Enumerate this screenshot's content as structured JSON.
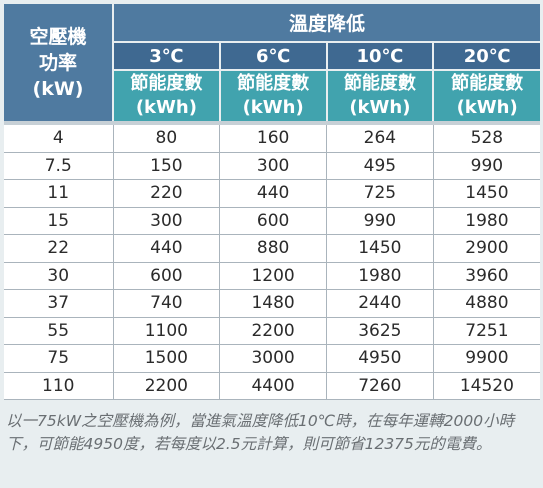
{
  "header": {
    "power_label_line1": "空壓機",
    "power_label_line2": "功率",
    "power_label_line3": "(kW)",
    "group_title": "溫度降低",
    "columns": [
      {
        "temp": "3℃",
        "label": "節能度數",
        "unit": "(kWh)"
      },
      {
        "temp": "6℃",
        "label": "節能度數",
        "unit": "(kWh)"
      },
      {
        "temp": "10℃",
        "label": "節能度數",
        "unit": "(kWh)"
      },
      {
        "temp": "20℃",
        "label": "節能度數",
        "unit": "(kWh)"
      }
    ]
  },
  "rows": [
    [
      "4",
      "80",
      "160",
      "264",
      "528"
    ],
    [
      "7.5",
      "150",
      "300",
      "495",
      "990"
    ],
    [
      "11",
      "220",
      "440",
      "725",
      "1450"
    ],
    [
      "15",
      "300",
      "600",
      "990",
      "1980"
    ],
    [
      "22",
      "440",
      "880",
      "1450",
      "2900"
    ],
    [
      "30",
      "600",
      "1200",
      "1980",
      "3960"
    ],
    [
      "37",
      "740",
      "1480",
      "2440",
      "4880"
    ],
    [
      "55",
      "1100",
      "2200",
      "3625",
      "7251"
    ],
    [
      "75",
      "1500",
      "3000",
      "4950",
      "9900"
    ],
    [
      "110",
      "2200",
      "4400",
      "7260",
      "14520"
    ]
  ],
  "footnote": "以一75kW之空壓機為例，當進氣溫度降低10℃時，在每年運轉2000小時下，可節能4950度，若每度以2.5元計算，則可節省12375元的電費。",
  "colors": {
    "header_blue": "#4f7aa0",
    "temp_blue": "#3f6991",
    "unit_teal": "#41a3ae"
  }
}
